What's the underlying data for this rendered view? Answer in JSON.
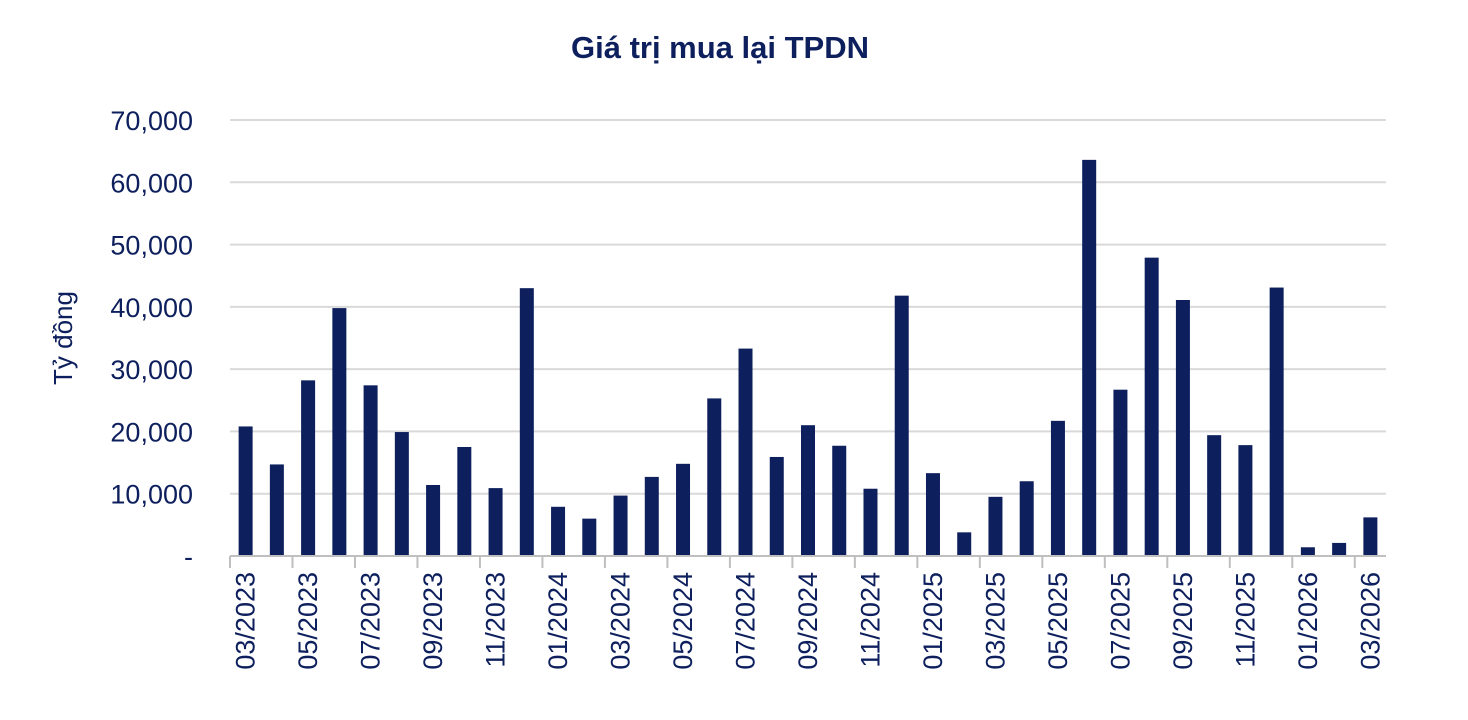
{
  "colors": {
    "bar": "#0d1f5c",
    "text": "#0d1f5c",
    "grid": "#d9d9d9",
    "axis": "#bfbfbf"
  },
  "chart_data": {
    "type": "bar",
    "title": "Giá trị mua lại TPDN",
    "xlabel": "",
    "ylabel": "Tỷ đồng",
    "ylim": [
      0,
      70000
    ],
    "yticks": [
      {
        "value": 70000,
        "label": "70,000"
      },
      {
        "value": 60000,
        "label": "60,000"
      },
      {
        "value": 50000,
        "label": "50,000"
      },
      {
        "value": 40000,
        "label": "40,000"
      },
      {
        "value": 30000,
        "label": "30,000"
      },
      {
        "value": 20000,
        "label": "20,000"
      },
      {
        "value": 10000,
        "label": "10,000"
      },
      {
        "value": 0,
        "label": "-"
      }
    ],
    "grid": true,
    "legend": "none",
    "categories": [
      "03/2023",
      "04/2023",
      "05/2023",
      "06/2023",
      "07/2023",
      "08/2023",
      "09/2023",
      "10/2023",
      "11/2023",
      "12/2023",
      "01/2024",
      "02/2024",
      "03/2024",
      "04/2024",
      "05/2024",
      "06/2024",
      "07/2024",
      "08/2024",
      "09/2024",
      "10/2024",
      "11/2024",
      "12/2024",
      "01/2025",
      "02/2025",
      "03/2025",
      "04/2025",
      "05/2025",
      "06/2025",
      "07/2025",
      "08/2025",
      "09/2025",
      "10/2025",
      "11/2025",
      "12/2025",
      "01/2026",
      "02/2026",
      "03/2026"
    ],
    "tick_labels": [
      "03/2023",
      "05/2023",
      "07/2023",
      "09/2023",
      "11/2023",
      "01/2024",
      "03/2024",
      "05/2024",
      "07/2024",
      "09/2024",
      "11/2024",
      "01/2025",
      "03/2025",
      "05/2025",
      "07/2025",
      "09/2025",
      "11/2025",
      "01/2026",
      "03/2026"
    ],
    "values": [
      20800,
      14700,
      28200,
      39800,
      27400,
      19900,
      11400,
      17500,
      10900,
      43000,
      7900,
      6000,
      9700,
      12700,
      14800,
      25300,
      33300,
      15900,
      21000,
      17700,
      10800,
      41800,
      13300,
      3800,
      9500,
      12000,
      21700,
      63600,
      26700,
      47900,
      41100,
      19400,
      17800,
      43100,
      1400,
      2100,
      6200
    ]
  }
}
